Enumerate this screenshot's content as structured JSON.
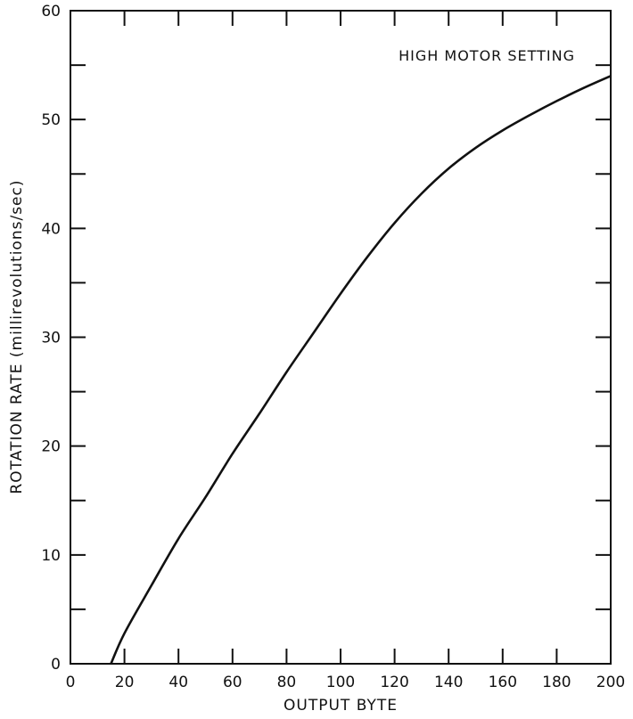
{
  "chart_data": {
    "type": "line",
    "title": "",
    "annotation": "HIGH MOTOR SETTING",
    "xlabel": "OUTPUT BYTE",
    "ylabel": "ROTATION RATE (millirevolutions/sec)",
    "xlim": [
      0,
      200
    ],
    "ylim": [
      0,
      60
    ],
    "xticks": [
      0,
      20,
      40,
      60,
      80,
      100,
      120,
      140,
      160,
      180,
      200
    ],
    "yticks": [
      0,
      10,
      20,
      30,
      40,
      50,
      60
    ],
    "grid": false,
    "series": [
      {
        "x": [
          15,
          20,
          30,
          40,
          50,
          60,
          70,
          80,
          90,
          100,
          110,
          120,
          130,
          140,
          150,
          160,
          170,
          180,
          190,
          200
        ],
        "y": [
          0,
          2.8,
          7.2,
          11.5,
          15.3,
          19.3,
          23.0,
          26.8,
          30.4,
          34.0,
          37.4,
          40.5,
          43.2,
          45.5,
          47.4,
          49.0,
          50.4,
          51.7,
          52.9,
          54.0
        ]
      }
    ]
  }
}
